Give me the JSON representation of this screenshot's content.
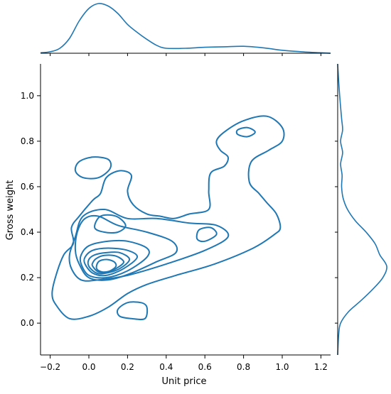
{
  "chart_data": {
    "type": "kde_joint",
    "xlabel": "Unit price",
    "ylabel": "Gross weight",
    "xlim": [
      -0.25,
      1.25
    ],
    "ylim": [
      -0.14,
      1.14
    ],
    "x_ticks": [
      -0.2,
      0.0,
      0.2,
      0.4,
      0.6,
      0.8,
      1.0,
      1.2
    ],
    "y_ticks": [
      0.0,
      0.2,
      0.4,
      0.6,
      0.8,
      1.0
    ],
    "x_tick_labels": [
      "−0.2",
      "0.0",
      "0.2",
      "0.4",
      "0.6",
      "0.8",
      "1.0",
      "1.2"
    ],
    "y_tick_labels": [
      "0.0",
      "0.2",
      "0.4",
      "0.6",
      "0.8",
      "1.0"
    ],
    "grid": false,
    "line_color": "#1f77b4",
    "contour_levels": 10,
    "mode_estimate": {
      "x": 0.09,
      "y": 0.23
    },
    "marginal_x": {
      "x": [
        -0.25,
        -0.2,
        -0.15,
        -0.1,
        -0.05,
        0.0,
        0.05,
        0.1,
        0.15,
        0.2,
        0.25,
        0.3,
        0.35,
        0.4,
        0.5,
        0.6,
        0.7,
        0.8,
        0.9,
        1.0,
        1.1,
        1.2,
        1.25
      ],
      "density": [
        0.01,
        0.03,
        0.1,
        0.3,
        0.65,
        0.9,
        1.0,
        0.95,
        0.8,
        0.58,
        0.42,
        0.28,
        0.16,
        0.1,
        0.1,
        0.12,
        0.13,
        0.14,
        0.11,
        0.06,
        0.03,
        0.01,
        0.0
      ]
    },
    "marginal_y": {
      "y": [
        -0.14,
        -0.05,
        0.0,
        0.05,
        0.1,
        0.15,
        0.2,
        0.25,
        0.3,
        0.35,
        0.4,
        0.45,
        0.5,
        0.55,
        0.6,
        0.65,
        0.7,
        0.75,
        0.8,
        0.85,
        0.9,
        1.0,
        1.1,
        1.14
      ],
      "density": [
        0.0,
        0.02,
        0.06,
        0.22,
        0.48,
        0.72,
        0.92,
        1.0,
        0.86,
        0.76,
        0.58,
        0.36,
        0.2,
        0.11,
        0.08,
        0.09,
        0.06,
        0.1,
        0.06,
        0.1,
        0.08,
        0.04,
        0.01,
        0.0
      ]
    },
    "contours": [
      {
        "points": [
          [
            -0.17,
            0.08
          ],
          [
            -0.1,
            0.02
          ],
          [
            0.0,
            0.03
          ],
          [
            0.1,
            0.07
          ],
          [
            0.2,
            0.13
          ],
          [
            0.3,
            0.17
          ],
          [
            0.45,
            0.21
          ],
          [
            0.65,
            0.26
          ],
          [
            0.85,
            0.33
          ],
          [
            0.96,
            0.39
          ],
          [
            0.99,
            0.42
          ],
          [
            0.97,
            0.48
          ],
          [
            0.92,
            0.53
          ],
          [
            0.88,
            0.57
          ],
          [
            0.83,
            0.62
          ],
          [
            0.84,
            0.71
          ],
          [
            0.93,
            0.76
          ],
          [
            1.0,
            0.8
          ],
          [
            1.0,
            0.86
          ],
          [
            0.92,
            0.91
          ],
          [
            0.8,
            0.89
          ],
          [
            0.7,
            0.84
          ],
          [
            0.66,
            0.8
          ],
          [
            0.68,
            0.76
          ],
          [
            0.72,
            0.73
          ],
          [
            0.7,
            0.69
          ],
          [
            0.63,
            0.66
          ],
          [
            0.62,
            0.58
          ],
          [
            0.62,
            0.5
          ],
          [
            0.52,
            0.48
          ],
          [
            0.44,
            0.46
          ],
          [
            0.37,
            0.47
          ],
          [
            0.3,
            0.48
          ],
          [
            0.23,
            0.52
          ],
          [
            0.2,
            0.58
          ],
          [
            0.22,
            0.65
          ],
          [
            0.16,
            0.67
          ],
          [
            0.09,
            0.64
          ],
          [
            0.06,
            0.57
          ],
          [
            0.02,
            0.54
          ],
          [
            -0.05,
            0.47
          ],
          [
            -0.09,
            0.42
          ],
          [
            -0.08,
            0.35
          ],
          [
            -0.13,
            0.3
          ],
          [
            -0.17,
            0.21
          ],
          [
            -0.19,
            0.13
          ]
        ]
      },
      {
        "points": [
          [
            -0.07,
            0.67
          ],
          [
            -0.03,
            0.64
          ],
          [
            0.05,
            0.64
          ],
          [
            0.11,
            0.68
          ],
          [
            0.1,
            0.72
          ],
          [
            0.02,
            0.73
          ],
          [
            -0.05,
            0.71
          ]
        ]
      },
      {
        "points": [
          [
            0.15,
            0.06
          ],
          [
            0.2,
            0.09
          ],
          [
            0.27,
            0.09
          ],
          [
            0.3,
            0.07
          ],
          [
            0.29,
            0.02
          ],
          [
            0.22,
            0.02
          ],
          [
            0.16,
            0.03
          ]
        ]
      },
      {
        "points": [
          [
            -0.09,
            0.24
          ],
          [
            -0.04,
            0.19
          ],
          [
            0.05,
            0.19
          ],
          [
            0.2,
            0.21
          ],
          [
            0.4,
            0.26
          ],
          [
            0.6,
            0.32
          ],
          [
            0.72,
            0.38
          ],
          [
            0.66,
            0.43
          ],
          [
            0.52,
            0.44
          ],
          [
            0.35,
            0.46
          ],
          [
            0.2,
            0.46
          ],
          [
            0.08,
            0.5
          ],
          [
            -0.03,
            0.47
          ],
          [
            -0.07,
            0.38
          ],
          [
            -0.1,
            0.3
          ]
        ]
      },
      {
        "points": [
          [
            0.56,
            0.37
          ],
          [
            0.6,
            0.36
          ],
          [
            0.66,
            0.39
          ],
          [
            0.63,
            0.42
          ],
          [
            0.57,
            0.41
          ]
        ]
      },
      {
        "points": [
          [
            0.77,
            0.83
          ],
          [
            0.82,
            0.82
          ],
          [
            0.86,
            0.84
          ],
          [
            0.82,
            0.86
          ],
          [
            0.77,
            0.85
          ]
        ]
      },
      {
        "points": [
          [
            -0.05,
            0.26
          ],
          [
            0.0,
            0.2
          ],
          [
            0.1,
            0.19
          ],
          [
            0.22,
            0.22
          ],
          [
            0.35,
            0.27
          ],
          [
            0.45,
            0.31
          ],
          [
            0.43,
            0.36
          ],
          [
            0.3,
            0.4
          ],
          [
            0.15,
            0.43
          ],
          [
            0.05,
            0.47
          ],
          [
            -0.02,
            0.46
          ],
          [
            -0.06,
            0.4
          ],
          [
            -0.07,
            0.32
          ]
        ]
      },
      {
        "points": [
          [
            0.03,
            0.42
          ],
          [
            0.08,
            0.4
          ],
          [
            0.15,
            0.4
          ],
          [
            0.19,
            0.43
          ],
          [
            0.14,
            0.47
          ],
          [
            0.06,
            0.47
          ]
        ]
      },
      {
        "points": [
          [
            -0.04,
            0.26
          ],
          [
            0.0,
            0.21
          ],
          [
            0.09,
            0.2
          ],
          [
            0.2,
            0.23
          ],
          [
            0.3,
            0.29
          ],
          [
            0.3,
            0.33
          ],
          [
            0.2,
            0.36
          ],
          [
            0.1,
            0.36
          ],
          [
            0.0,
            0.34
          ],
          [
            -0.04,
            0.3
          ]
        ]
      },
      {
        "points": [
          [
            -0.02,
            0.26
          ],
          [
            0.02,
            0.22
          ],
          [
            0.09,
            0.21
          ],
          [
            0.18,
            0.24
          ],
          [
            0.25,
            0.29
          ],
          [
            0.2,
            0.32
          ],
          [
            0.1,
            0.33
          ],
          [
            0.02,
            0.32
          ],
          [
            -0.02,
            0.29
          ]
        ]
      },
      {
        "points": [
          [
            0.0,
            0.25
          ],
          [
            0.04,
            0.22
          ],
          [
            0.09,
            0.22
          ],
          [
            0.16,
            0.24
          ],
          [
            0.21,
            0.28
          ],
          [
            0.16,
            0.31
          ],
          [
            0.09,
            0.31
          ],
          [
            0.03,
            0.3
          ],
          [
            0.0,
            0.28
          ]
        ]
      },
      {
        "points": [
          [
            0.02,
            0.25
          ],
          [
            0.05,
            0.225
          ],
          [
            0.1,
            0.225
          ],
          [
            0.15,
            0.245
          ],
          [
            0.18,
            0.27
          ],
          [
            0.14,
            0.295
          ],
          [
            0.08,
            0.298
          ],
          [
            0.04,
            0.285
          ],
          [
            0.02,
            0.265
          ]
        ]
      },
      {
        "points": [
          [
            0.04,
            0.24
          ],
          [
            0.07,
            0.225
          ],
          [
            0.11,
            0.23
          ],
          [
            0.14,
            0.25
          ],
          [
            0.13,
            0.27
          ],
          [
            0.09,
            0.28
          ],
          [
            0.05,
            0.27
          ]
        ]
      }
    ]
  }
}
